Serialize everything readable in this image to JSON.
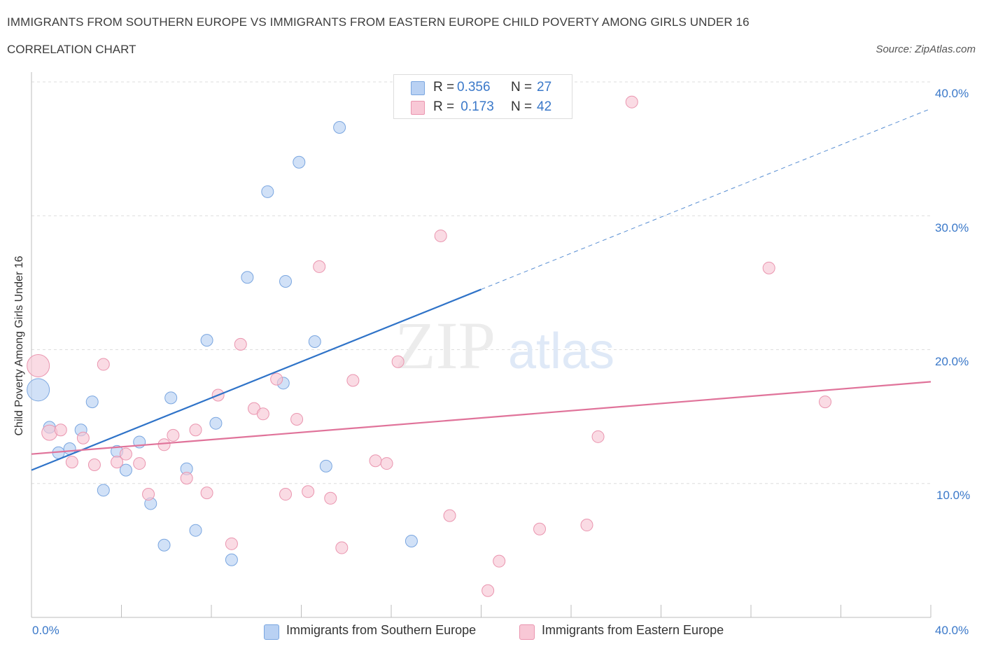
{
  "title": "IMMIGRANTS FROM SOUTHERN EUROPE VS IMMIGRANTS FROM EASTERN EUROPE CHILD POVERTY AMONG GIRLS UNDER 16",
  "subtitle": "CORRELATION CHART",
  "source": "Source: ZipAtlas.com",
  "watermark": {
    "zip": "ZIP",
    "atlas": "atlas"
  },
  "colors": {
    "blue_fill": "#b9d1f3",
    "blue_stroke": "#7aa6e0",
    "blue_line": "#2f73c8",
    "pink_fill": "#f8c8d6",
    "pink_stroke": "#ea95af",
    "pink_line": "#e0739a",
    "tick_text": "#3a78c9",
    "grid": "#dedede"
  },
  "legend_top": [
    {
      "r_label": "R = ",
      "r_value": "0.356",
      "n_label": "N = ",
      "n_value": "27"
    },
    {
      "r_label": "R = ",
      "r_value": " 0.173",
      "n_label": "N = ",
      "n_value": "42"
    }
  ],
  "chart_data": {
    "type": "scatter",
    "title": "IMMIGRANTS FROM SOUTHERN EUROPE VS IMMIGRANTS FROM EASTERN EUROPE CHILD POVERTY AMONG GIRLS UNDER 16",
    "subtitle": "CORRELATION CHART",
    "xlabel": "",
    "ylabel": "Child Poverty Among Girls Under 16",
    "xlim": [
      0,
      40
    ],
    "ylim": [
      0,
      40
    ],
    "x_tick_labels": [
      "0.0%",
      "40.0%"
    ],
    "y_tick_labels": [
      {
        "value": 40,
        "label": "40.0%"
      },
      {
        "value": 30,
        "label": "30.0%"
      },
      {
        "value": 20,
        "label": "20.0%"
      },
      {
        "value": 10,
        "label": "10.0%"
      }
    ],
    "grid": true,
    "legend_position": "bottom",
    "series": [
      {
        "name": "Immigrants from Southern Europe",
        "R": 0.356,
        "N": 27,
        "trend": {
          "x0": 0,
          "y0": 11.0,
          "x1": 20.0,
          "y1": 24.5,
          "dashed_to_x": 40,
          "dashed_to_y": 38.0
        },
        "points": [
          {
            "x": 0.3,
            "y": 17.0,
            "s": 2
          },
          {
            "x": 0.8,
            "y": 14.2,
            "s": 1
          },
          {
            "x": 1.2,
            "y": 12.3,
            "s": 1
          },
          {
            "x": 1.7,
            "y": 12.6,
            "s": 1
          },
          {
            "x": 2.2,
            "y": 14.0,
            "s": 1
          },
          {
            "x": 2.7,
            "y": 16.1,
            "s": 1
          },
          {
            "x": 3.2,
            "y": 9.5,
            "s": 1
          },
          {
            "x": 3.8,
            "y": 12.4,
            "s": 1
          },
          {
            "x": 4.2,
            "y": 11.0,
            "s": 1
          },
          {
            "x": 4.8,
            "y": 13.1,
            "s": 1
          },
          {
            "x": 5.3,
            "y": 8.5,
            "s": 1
          },
          {
            "x": 5.9,
            "y": 5.4,
            "s": 1
          },
          {
            "x": 6.2,
            "y": 16.4,
            "s": 1
          },
          {
            "x": 6.9,
            "y": 11.1,
            "s": 1
          },
          {
            "x": 7.3,
            "y": 6.5,
            "s": 1
          },
          {
            "x": 7.8,
            "y": 20.7,
            "s": 1
          },
          {
            "x": 8.2,
            "y": 14.5,
            "s": 1
          },
          {
            "x": 8.9,
            "y": 4.3,
            "s": 1
          },
          {
            "x": 9.6,
            "y": 25.4,
            "s": 1
          },
          {
            "x": 10.5,
            "y": 31.8,
            "s": 1
          },
          {
            "x": 11.2,
            "y": 17.5,
            "s": 1
          },
          {
            "x": 11.3,
            "y": 25.1,
            "s": 1
          },
          {
            "x": 11.9,
            "y": 34.0,
            "s": 1
          },
          {
            "x": 12.6,
            "y": 20.6,
            "s": 1
          },
          {
            "x": 13.1,
            "y": 11.3,
            "s": 1
          },
          {
            "x": 13.7,
            "y": 36.6,
            "s": 1
          },
          {
            "x": 16.9,
            "y": 5.7,
            "s": 1
          }
        ]
      },
      {
        "name": "Immigrants from Eastern Europe",
        "R": 0.173,
        "N": 42,
        "trend": {
          "x0": 0,
          "y0": 12.2,
          "x1": 40,
          "y1": 17.6
        },
        "points": [
          {
            "x": 0.3,
            "y": 18.8,
            "s": 2
          },
          {
            "x": 0.8,
            "y": 13.8,
            "s": 1.4
          },
          {
            "x": 1.3,
            "y": 14.0,
            "s": 1
          },
          {
            "x": 1.8,
            "y": 11.6,
            "s": 1
          },
          {
            "x": 2.3,
            "y": 13.4,
            "s": 1
          },
          {
            "x": 2.8,
            "y": 11.4,
            "s": 1
          },
          {
            "x": 3.2,
            "y": 18.9,
            "s": 1
          },
          {
            "x": 3.8,
            "y": 11.6,
            "s": 1
          },
          {
            "x": 4.2,
            "y": 12.2,
            "s": 1
          },
          {
            "x": 4.8,
            "y": 11.5,
            "s": 1
          },
          {
            "x": 5.2,
            "y": 9.2,
            "s": 1
          },
          {
            "x": 5.9,
            "y": 12.9,
            "s": 1
          },
          {
            "x": 6.3,
            "y": 13.6,
            "s": 1
          },
          {
            "x": 6.9,
            "y": 10.4,
            "s": 1
          },
          {
            "x": 7.3,
            "y": 14.0,
            "s": 1
          },
          {
            "x": 7.8,
            "y": 9.3,
            "s": 1
          },
          {
            "x": 8.3,
            "y": 16.6,
            "s": 1
          },
          {
            "x": 8.9,
            "y": 5.5,
            "s": 1
          },
          {
            "x": 9.3,
            "y": 20.4,
            "s": 1
          },
          {
            "x": 9.9,
            "y": 15.6,
            "s": 1
          },
          {
            "x": 10.3,
            "y": 15.2,
            "s": 1
          },
          {
            "x": 10.9,
            "y": 17.8,
            "s": 1
          },
          {
            "x": 11.3,
            "y": 9.2,
            "s": 1
          },
          {
            "x": 11.8,
            "y": 14.8,
            "s": 1
          },
          {
            "x": 12.3,
            "y": 9.4,
            "s": 1
          },
          {
            "x": 12.8,
            "y": 26.2,
            "s": 1
          },
          {
            "x": 13.3,
            "y": 8.9,
            "s": 1
          },
          {
            "x": 13.8,
            "y": 5.2,
            "s": 1
          },
          {
            "x": 14.3,
            "y": 17.7,
            "s": 1
          },
          {
            "x": 15.3,
            "y": 11.7,
            "s": 1
          },
          {
            "x": 15.8,
            "y": 11.5,
            "s": 1
          },
          {
            "x": 16.3,
            "y": 19.1,
            "s": 1
          },
          {
            "x": 18.2,
            "y": 28.5,
            "s": 1
          },
          {
            "x": 18.6,
            "y": 7.6,
            "s": 1
          },
          {
            "x": 20.3,
            "y": 2.0,
            "s": 1
          },
          {
            "x": 20.8,
            "y": 4.2,
            "s": 1
          },
          {
            "x": 22.6,
            "y": 6.6,
            "s": 1
          },
          {
            "x": 24.7,
            "y": 6.9,
            "s": 1
          },
          {
            "x": 25.2,
            "y": 13.5,
            "s": 1
          },
          {
            "x": 26.7,
            "y": 38.5,
            "s": 1
          },
          {
            "x": 32.8,
            "y": 26.1,
            "s": 1
          },
          {
            "x": 35.3,
            "y": 16.1,
            "s": 1
          }
        ]
      }
    ]
  }
}
